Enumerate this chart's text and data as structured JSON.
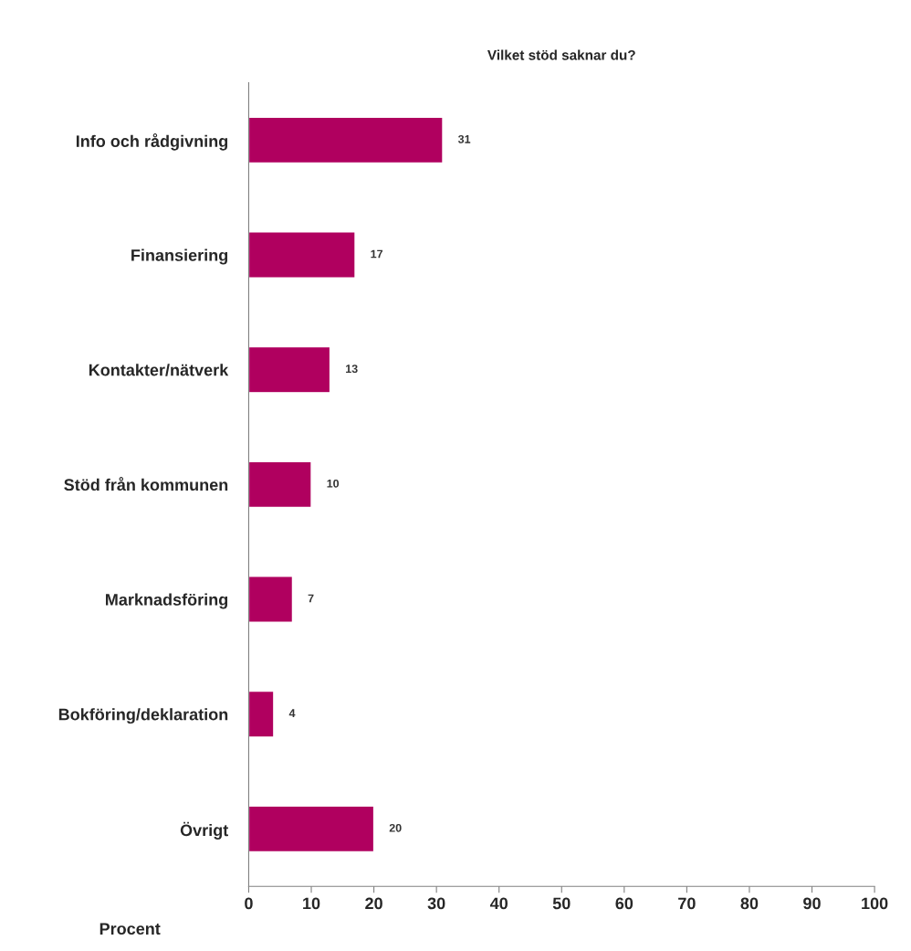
{
  "chart_data": {
    "type": "bar",
    "orientation": "horizontal",
    "title": "Vilket stöd saknar du?",
    "xlabel": "Procent",
    "categories": [
      "Info och rådgivning",
      "Finansiering",
      "Kontakter/nätverk",
      "Stöd från kommunen",
      "Marknadsföring",
      "Bokföring/deklaration",
      "Övrigt"
    ],
    "values": [
      31,
      17,
      13,
      10,
      7,
      4,
      20
    ],
    "color": "#b0005f",
    "xlim": [
      0,
      100
    ],
    "xticks": [
      0,
      10,
      20,
      30,
      40,
      50,
      60,
      70,
      80,
      90,
      100
    ],
    "data_labels": true,
    "grid": false,
    "legend": false
  }
}
